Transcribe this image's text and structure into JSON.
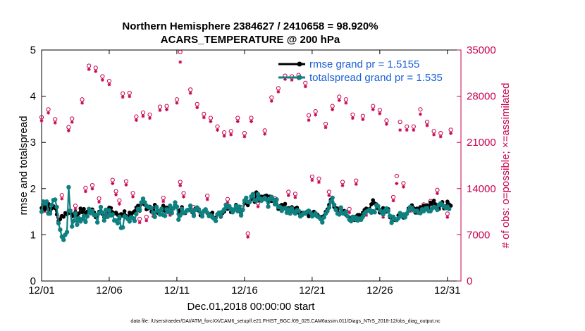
{
  "colors": {
    "rmse": "#000000",
    "spread": "#0f8080",
    "obs": "#c8004f",
    "legend_text": "#1a5fd6",
    "axis": "#000000"
  },
  "chart_data": {
    "type": "line",
    "title": [
      "Northern Hemisphere 2384627 / 2410658 = 98.920%",
      "ACARS_TEMPERATURE @ 200 hPa"
    ],
    "xlabel": "Dec.01,2018 00:00:00 start",
    "ylabel_left": "rmse and totalspread",
    "ylabel_right": "# of obs: o=possible; ×=assimilated",
    "footer": "data file: /Users/raeder/DAI/ATM_forcXX/CAM6_setup/f.e21.FHIST_BGC.f09_025.CAM6assim.011/Diags_NTrS_2018-12/obs_diag_output.nc",
    "x_ticks": [
      1,
      6,
      11,
      16,
      21,
      26,
      31
    ],
    "x_tick_labels": [
      "12/01",
      "12/06",
      "12/11",
      "12/16",
      "12/21",
      "12/26",
      "12/31"
    ],
    "xlim": [
      1,
      32
    ],
    "ylim_left": [
      0,
      5
    ],
    "y_ticks_left": [
      0,
      1,
      2,
      3,
      4,
      5
    ],
    "y_tick_labels_left": [
      "0",
      "1",
      "2",
      "3",
      "4",
      "5"
    ],
    "ylim_right": [
      0,
      35000
    ],
    "y_ticks_right": [
      0,
      7000,
      14000,
      21000,
      28000,
      35000
    ],
    "y_tick_labels_right": [
      "0",
      "7000",
      "14000",
      "21000",
      "28000",
      "35000"
    ],
    "legend": {
      "placement": "top-center",
      "entries": [
        "rmse grand pr = 1.5155",
        "totalspread grand pr = 1.535"
      ]
    },
    "x_step_days": 0.125,
    "series": [
      {
        "name": "rmse",
        "axis": "left",
        "values": [
          1.58,
          1.62,
          1.55,
          1.6,
          1.67,
          1.5,
          1.57,
          1.62,
          1.58,
          1.44,
          1.3,
          1.34,
          1.41,
          1.39,
          1.47,
          1.44,
          1.52,
          1.47,
          1.4,
          1.45,
          1.49,
          1.43,
          1.46,
          1.57,
          1.49,
          1.56,
          1.46,
          1.5,
          1.53,
          1.48,
          1.55,
          1.49,
          1.38,
          1.42,
          1.5,
          1.49,
          1.45,
          1.38,
          1.39,
          1.45,
          1.59,
          1.58,
          1.49,
          1.46,
          1.48,
          1.43,
          1.35,
          1.45,
          1.41,
          1.51,
          1.41,
          1.38,
          1.48,
          1.43,
          1.48,
          1.51,
          1.59,
          1.63,
          1.52,
          1.67,
          1.73,
          1.65,
          1.55,
          1.57,
          1.61,
          1.5,
          1.54,
          1.65,
          1.61,
          1.47,
          1.51,
          1.57,
          1.63,
          1.52,
          1.59,
          1.57,
          1.6,
          1.49,
          1.58,
          1.64,
          1.6,
          1.45,
          1.54,
          1.6,
          1.47,
          1.47,
          1.53,
          1.53,
          1.56,
          1.49,
          1.44,
          1.57,
          1.55,
          1.52,
          1.42,
          1.44,
          1.52,
          1.55,
          1.47,
          1.4,
          1.45,
          1.48,
          1.36,
          1.37,
          1.45,
          1.45,
          1.39,
          1.47,
          1.5,
          1.58,
          1.56,
          1.6,
          1.49,
          1.5,
          1.54,
          1.65,
          1.55,
          1.59,
          1.47,
          1.54,
          1.68,
          1.7,
          1.64,
          1.72,
          1.77,
          1.79,
          1.71,
          1.92,
          1.74,
          1.75,
          1.83,
          1.78,
          1.84,
          1.85,
          1.7,
          1.83,
          1.73,
          1.77,
          1.68,
          1.77,
          1.56,
          1.62,
          1.65,
          1.6,
          1.67,
          1.54,
          1.58,
          1.48,
          1.6,
          1.53,
          1.57,
          1.59,
          1.48,
          1.42,
          1.48,
          1.48,
          1.48,
          1.46,
          1.4,
          1.42,
          1.4,
          1.5,
          1.47,
          1.44,
          1.4,
          1.38,
          1.39,
          1.41,
          1.5,
          1.55,
          1.65,
          1.76,
          1.71,
          1.6,
          1.58,
          1.57,
          1.45,
          1.57,
          1.46,
          1.52,
          1.43,
          1.4,
          1.37,
          1.29,
          1.35,
          1.32,
          1.4,
          1.43,
          1.43,
          1.38,
          1.48,
          1.54,
          1.57,
          1.55,
          1.56,
          1.66,
          1.75,
          1.68,
          1.66,
          1.57,
          1.48,
          1.51,
          1.58,
          1.51,
          1.5,
          1.56,
          1.38,
          1.28,
          1.36,
          1.32,
          1.33,
          1.42,
          1.44,
          1.41,
          1.37,
          1.39,
          1.45,
          1.57,
          1.58,
          1.64,
          1.58,
          1.48,
          1.57,
          1.52,
          1.6,
          1.57,
          1.63,
          1.55,
          1.64,
          1.55,
          1.7,
          1.67,
          1.74,
          1.66,
          1.63,
          1.56,
          1.64,
          1.71,
          1.57,
          1.61,
          1.72,
          1.66,
          1.63
        ]
      },
      {
        "name": "totalspread",
        "axis": "left",
        "values": [
          1.5,
          1.72,
          1.68,
          1.72,
          1.46,
          1.46,
          1.65,
          1.75,
          1.76,
          1.6,
          1.25,
          1.11,
          0.96,
          0.89,
          1.0,
          1.06,
          2.03,
          1.52,
          1.18,
          1.3,
          1.46,
          1.22,
          1.36,
          1.29,
          1.34,
          1.41,
          1.28,
          1.4,
          1.56,
          1.47,
          1.51,
          1.43,
          1.43,
          1.27,
          1.47,
          1.6,
          1.48,
          1.31,
          1.54,
          1.39,
          1.53,
          1.42,
          1.44,
          1.31,
          1.31,
          1.25,
          1.39,
          1.15,
          1.16,
          1.4,
          1.38,
          1.34,
          1.29,
          1.38,
          1.36,
          1.3,
          1.45,
          1.56,
          1.54,
          1.7,
          1.78,
          1.7,
          1.63,
          1.6,
          1.59,
          1.58,
          1.48,
          1.39,
          1.6,
          1.52,
          1.44,
          1.56,
          1.43,
          1.41,
          1.55,
          1.49,
          1.63,
          1.47,
          1.57,
          1.7,
          1.61,
          1.33,
          1.42,
          1.56,
          1.48,
          1.49,
          1.53,
          1.54,
          1.63,
          1.51,
          1.41,
          1.54,
          1.59,
          1.55,
          1.48,
          1.4,
          1.51,
          1.55,
          1.48,
          1.41,
          1.42,
          1.38,
          1.35,
          1.3,
          1.44,
          1.48,
          1.41,
          1.5,
          1.55,
          1.65,
          1.6,
          1.62,
          1.56,
          1.49,
          1.55,
          1.62,
          1.51,
          1.61,
          1.42,
          1.54,
          1.74,
          1.8,
          1.71,
          1.71,
          1.83,
          1.88,
          1.75,
          1.74,
          1.88,
          1.79,
          1.74,
          1.77,
          1.8,
          1.76,
          1.61,
          1.77,
          1.82,
          1.76,
          1.66,
          1.76,
          1.6,
          1.6,
          1.52,
          1.57,
          1.58,
          1.48,
          1.55,
          1.46,
          1.57,
          1.5,
          1.46,
          1.53,
          1.52,
          1.4,
          1.43,
          1.47,
          1.46,
          1.5,
          1.52,
          1.48,
          1.4,
          1.43,
          1.46,
          1.4,
          1.38,
          1.34,
          1.27,
          1.38,
          1.46,
          1.51,
          1.59,
          1.72,
          1.8,
          1.65,
          1.54,
          1.46,
          1.44,
          1.59,
          1.47,
          1.46,
          1.5,
          1.4,
          1.33,
          1.3,
          1.39,
          1.34,
          1.37,
          1.31,
          1.35,
          1.33,
          1.39,
          1.46,
          1.5,
          1.52,
          1.54,
          1.48,
          1.51,
          1.49,
          1.64,
          1.62,
          1.54,
          1.5,
          1.44,
          1.52,
          1.57,
          1.52,
          1.41,
          1.26,
          1.39,
          1.34,
          1.32,
          1.36,
          1.47,
          1.4,
          1.44,
          1.38,
          1.46,
          1.53,
          1.6,
          1.58,
          1.53,
          1.51,
          1.52,
          1.48,
          1.47,
          1.55,
          1.51,
          1.57,
          1.58,
          1.51,
          1.51,
          1.57,
          1.6,
          1.59,
          1.54,
          1.65,
          1.68,
          1.64,
          1.62,
          1.58,
          1.61,
          1.56
        ]
      }
    ],
    "obs_possible": [
      [
        1.0,
        24800
      ],
      [
        1.25,
        11200
      ],
      [
        1.5,
        26000
      ],
      [
        2.0,
        24500
      ],
      [
        2.25,
        9600
      ],
      [
        2.5,
        13000
      ],
      [
        3.0,
        23300
      ],
      [
        3.25,
        24600
      ],
      [
        3.5,
        11400
      ],
      [
        4.0,
        27500
      ],
      [
        4.25,
        14100
      ],
      [
        4.5,
        32600
      ],
      [
        4.75,
        14500
      ],
      [
        5.0,
        32300
      ],
      [
        5.25,
        12500
      ],
      [
        5.5,
        31000
      ],
      [
        6.0,
        30300
      ],
      [
        6.25,
        15300
      ],
      [
        6.5,
        13600
      ],
      [
        6.75,
        12200
      ],
      [
        7.0,
        28400
      ],
      [
        7.25,
        15100
      ],
      [
        7.5,
        28500
      ],
      [
        7.75,
        13300
      ],
      [
        8.0,
        24900
      ],
      [
        8.25,
        9400
      ],
      [
        8.5,
        25500
      ],
      [
        8.75,
        9700
      ],
      [
        9.0,
        25200
      ],
      [
        9.25,
        10300
      ],
      [
        9.75,
        26400
      ],
      [
        10.0,
        12600
      ],
      [
        10.25,
        26500
      ],
      [
        10.5,
        10500
      ],
      [
        11.0,
        27500
      ],
      [
        11.25,
        34700
      ],
      [
        11.25,
        15000
      ],
      [
        11.5,
        13300
      ],
      [
        12.0,
        29000
      ],
      [
        12.25,
        11200
      ],
      [
        12.5,
        26800
      ],
      [
        13.0,
        25300
      ],
      [
        13.25,
        12900
      ],
      [
        13.5,
        24700
      ],
      [
        14.0,
        23400
      ],
      [
        14.5,
        22500
      ],
      [
        14.75,
        12400
      ],
      [
        15.0,
        22700
      ],
      [
        15.5,
        24700
      ],
      [
        15.75,
        11200
      ],
      [
        16.0,
        22400
      ],
      [
        16.25,
        7200
      ],
      [
        16.5,
        24700
      ],
      [
        17.0,
        11800
      ],
      [
        17.5,
        22800
      ],
      [
        18.0,
        27800
      ],
      [
        18.25,
        12500
      ],
      [
        18.5,
        29200
      ],
      [
        19.0,
        31100
      ],
      [
        19.25,
        13500
      ],
      [
        19.5,
        31000
      ],
      [
        19.75,
        13200
      ],
      [
        20.0,
        31200
      ],
      [
        20.5,
        30000
      ],
      [
        20.75,
        25100
      ],
      [
        21.0,
        15800
      ],
      [
        21.25,
        25700
      ],
      [
        21.5,
        15500
      ],
      [
        22.0,
        23800
      ],
      [
        22.25,
        13500
      ],
      [
        22.5,
        26500
      ],
      [
        23.0,
        27900
      ],
      [
        23.25,
        15000
      ],
      [
        23.5,
        27500
      ],
      [
        23.75,
        10900
      ],
      [
        24.0,
        25200
      ],
      [
        24.25,
        15200
      ],
      [
        24.75,
        25000
      ],
      [
        25.0,
        10500
      ],
      [
        25.5,
        26500
      ],
      [
        26.0,
        25900
      ],
      [
        26.25,
        10200
      ],
      [
        26.5,
        24300
      ],
      [
        27.0,
        12700
      ],
      [
        27.25,
        15900
      ],
      [
        27.5,
        24100
      ],
      [
        27.75,
        14800
      ],
      [
        28.0,
        23400
      ],
      [
        28.25,
        11100
      ],
      [
        28.5,
        23400
      ],
      [
        28.75,
        10800
      ],
      [
        29.0,
        26000
      ],
      [
        29.25,
        11600
      ],
      [
        29.5,
        24100
      ],
      [
        29.75,
        12100
      ],
      [
        30.0,
        22700
      ],
      [
        30.25,
        13800
      ],
      [
        30.5,
        22400
      ],
      [
        31.0,
        10200
      ],
      [
        31.25,
        22900
      ]
    ],
    "obs_assimilated": [
      [
        1.0,
        24700
      ],
      [
        1.25,
        11000
      ],
      [
        1.5,
        25900
      ],
      [
        2.0,
        24400
      ],
      [
        2.25,
        9500
      ],
      [
        2.5,
        12900
      ],
      [
        3.0,
        23200
      ],
      [
        3.25,
        24500
      ],
      [
        3.5,
        11300
      ],
      [
        4.0,
        27400
      ],
      [
        4.25,
        14000
      ],
      [
        4.5,
        32500
      ],
      [
        4.75,
        14400
      ],
      [
        5.0,
        32200
      ],
      [
        5.25,
        12400
      ],
      [
        5.5,
        30900
      ],
      [
        6.0,
        30200
      ],
      [
        6.25,
        15200
      ],
      [
        6.5,
        13500
      ],
      [
        6.75,
        12100
      ],
      [
        7.0,
        28300
      ],
      [
        7.25,
        15000
      ],
      [
        7.5,
        28400
      ],
      [
        7.75,
        13200
      ],
      [
        8.0,
        24800
      ],
      [
        8.25,
        9300
      ],
      [
        8.5,
        25400
      ],
      [
        8.75,
        9600
      ],
      [
        9.0,
        25100
      ],
      [
        9.25,
        10200
      ],
      [
        9.75,
        26300
      ],
      [
        10.0,
        12500
      ],
      [
        10.25,
        26400
      ],
      [
        10.5,
        10400
      ],
      [
        11.0,
        27400
      ],
      [
        11.25,
        33600
      ],
      [
        11.25,
        14900
      ],
      [
        11.5,
        13200
      ],
      [
        12.0,
        28900
      ],
      [
        12.25,
        11100
      ],
      [
        12.5,
        26700
      ],
      [
        13.0,
        25200
      ],
      [
        13.25,
        12800
      ],
      [
        13.5,
        24600
      ],
      [
        14.0,
        23300
      ],
      [
        14.5,
        22400
      ],
      [
        14.75,
        12300
      ],
      [
        15.0,
        22600
      ],
      [
        15.5,
        24600
      ],
      [
        15.75,
        11100
      ],
      [
        16.0,
        22300
      ],
      [
        16.25,
        7100
      ],
      [
        16.5,
        24600
      ],
      [
        17.0,
        11700
      ],
      [
        17.5,
        22700
      ],
      [
        18.0,
        27700
      ],
      [
        18.25,
        12400
      ],
      [
        18.5,
        29100
      ],
      [
        19.0,
        31000
      ],
      [
        19.25,
        13400
      ],
      [
        19.5,
        30900
      ],
      [
        19.75,
        13100
      ],
      [
        20.0,
        31100
      ],
      [
        20.5,
        29900
      ],
      [
        20.75,
        24800
      ],
      [
        21.0,
        15700
      ],
      [
        21.25,
        25600
      ],
      [
        21.5,
        15400
      ],
      [
        22.0,
        23700
      ],
      [
        22.25,
        13400
      ],
      [
        22.5,
        26400
      ],
      [
        23.0,
        27800
      ],
      [
        23.25,
        14900
      ],
      [
        23.5,
        27400
      ],
      [
        23.75,
        10800
      ],
      [
        24.0,
        25100
      ],
      [
        24.25,
        15100
      ],
      [
        24.75,
        24900
      ],
      [
        25.0,
        10400
      ],
      [
        25.5,
        26400
      ],
      [
        26.0,
        25800
      ],
      [
        26.25,
        10100
      ],
      [
        26.5,
        24200
      ],
      [
        27.0,
        12600
      ],
      [
        27.25,
        15200
      ],
      [
        27.5,
        23300
      ],
      [
        27.75,
        14700
      ],
      [
        28.0,
        23300
      ],
      [
        28.25,
        11000
      ],
      [
        28.5,
        23300
      ],
      [
        28.75,
        10700
      ],
      [
        29.0,
        25700
      ],
      [
        29.25,
        11500
      ],
      [
        29.5,
        24000
      ],
      [
        29.75,
        12000
      ],
      [
        30.0,
        22600
      ],
      [
        30.25,
        13700
      ],
      [
        30.5,
        22300
      ],
      [
        31.0,
        10100
      ],
      [
        31.25,
        22800
      ]
    ]
  }
}
